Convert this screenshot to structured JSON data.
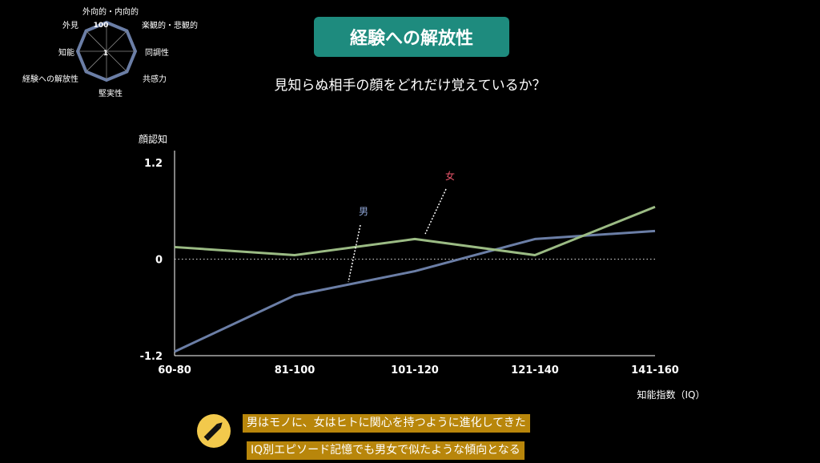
{
  "radar": {
    "axes": [
      "外向的・内向的",
      "楽観的・悲観的",
      "同調性",
      "共感力",
      "堅実性",
      "経験への解放性",
      "知能",
      "外見"
    ],
    "max_label": "100",
    "min_label": "1"
  },
  "header": {
    "title": "経験への解放性",
    "question": "見知らぬ相手の顔をどれだけ覚えているか？"
  },
  "chart_data": {
    "type": "line",
    "ylabel": "顔認知",
    "xlabel": "知能指数（IQ）",
    "categories": [
      "60-80",
      "81-100",
      "101-120",
      "121-140",
      "141-160"
    ],
    "y_ticks": [
      "1.2",
      "0",
      "-1.2"
    ],
    "ylim": [
      -1.2,
      1.2
    ],
    "series": [
      {
        "name": "男",
        "color": "#6b7ea6",
        "values": [
          -1.15,
          -0.45,
          -0.15,
          0.25,
          0.35
        ]
      },
      {
        "name": "女",
        "color": "#9bbb84",
        "values": [
          0.15,
          0.05,
          0.25,
          0.05,
          0.65
        ]
      }
    ]
  },
  "notes": [
    "男はモノに、女はヒトに関心を持つように進化してきた",
    "IQ別エピソード記憶でも男女で似たような傾向となる"
  ],
  "colors": {
    "accent": "#1e8b7e",
    "note_bg": "#b8860b",
    "icon_bg": "#f2c94c",
    "radar_stroke": "#6b7ea6"
  }
}
